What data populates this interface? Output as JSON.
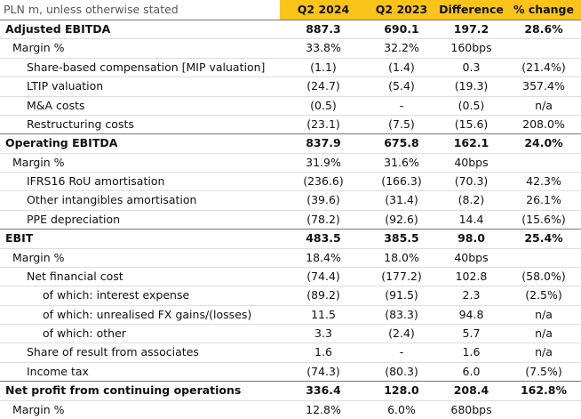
{
  "header": {
    "label": "PLN m, unless otherwise stated",
    "columns": [
      "Q2 2024",
      "Q2 2023",
      "Difference",
      "% change"
    ]
  },
  "rows": [
    {
      "label": "Adjusted EBITDA",
      "values": [
        "887.3",
        "690.1",
        "197.2",
        "28.6%"
      ]
    },
    {
      "label": "Margin %",
      "values": [
        "33.8%",
        "32.2%",
        "160bps"
      ]
    },
    {
      "label": "Share-based compensation [MIP valuation]",
      "values": [
        "(1.1)",
        "(1.4)",
        "0.3",
        "(21.4%)"
      ]
    },
    {
      "label": "LTIP valuation",
      "values": [
        "(24.7)",
        "(5.4)",
        "(19.3)",
        "357.4%"
      ]
    },
    {
      "label": "M&A costs",
      "values": [
        "(0.5)",
        "-",
        "(0.5)",
        "n/a"
      ]
    },
    {
      "label": "Restructuring costs",
      "values": [
        "(23.1)",
        "(7.5)",
        "(15.6)",
        "208.0%"
      ]
    },
    {
      "label": "Operating EBITDA",
      "values": [
        "837.9",
        "675.8",
        "162.1",
        "24.0%"
      ]
    },
    {
      "label": "Margin %",
      "values": [
        "31.9%",
        "31.6%",
        "40bps"
      ]
    },
    {
      "label": "IFRS16 RoU amortisation",
      "values": [
        "(236.6)",
        "(166.3)",
        "(70.3)",
        "42.3%"
      ]
    },
    {
      "label": "Other intangibles amortisation",
      "values": [
        "(39.6)",
        "(31.4)",
        "(8.2)",
        "26.1%"
      ]
    },
    {
      "label": "PPE depreciation",
      "values": [
        "(78.2)",
        "(92.6)",
        "14.4",
        "(15.6%)"
      ]
    },
    {
      "label": "EBIT",
      "values": [
        "483.5",
        "385.5",
        "98.0",
        "25.4%"
      ]
    },
    {
      "label": "Margin %",
      "values": [
        "18.4%",
        "18.0%",
        "40bps"
      ]
    },
    {
      "label": "Net financial cost",
      "values": [
        "(74.4)",
        "(177.2)",
        "102.8",
        "(58.0%)"
      ]
    },
    {
      "label": "of which: interest expense",
      "values": [
        "(89.2)",
        "(91.5)",
        "2.3",
        "(2.5%)"
      ]
    },
    {
      "label": "of which: unrealised FX gains/(losses)",
      "values": [
        "11.5",
        "(83.3)",
        "94.8",
        "n/a"
      ]
    },
    {
      "label": "of which: other",
      "values": [
        "3.3",
        "(2.4)",
        "5.7",
        "n/a"
      ]
    },
    {
      "label": "Share of result from associates",
      "values": [
        "1.6",
        "-",
        "1.6",
        "n/a"
      ]
    },
    {
      "label": "Income tax",
      "values": [
        "(74.3)",
        "(80.3)",
        "6.0",
        "(7.5%)"
      ]
    },
    {
      "label": "Net profit from continuing operations",
      "values": [
        "336.4",
        "128.0",
        "208.4",
        "162.8%"
      ]
    },
    {
      "label": "Margin %",
      "values": [
        "12.8%",
        "6.0%",
        "680bps"
      ]
    }
  ]
}
